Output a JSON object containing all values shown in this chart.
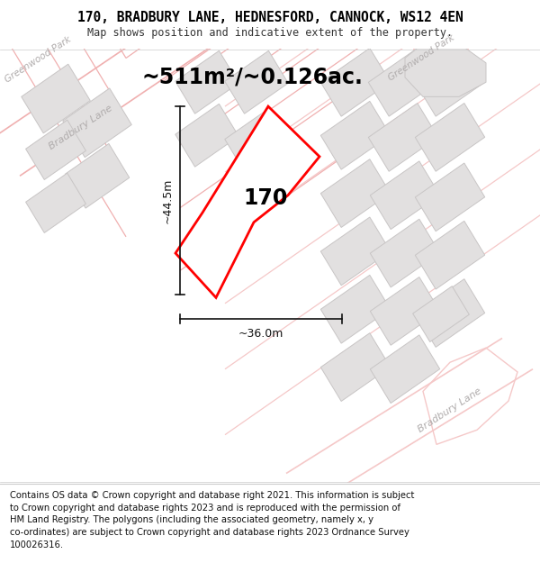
{
  "title": "170, BRADBURY LANE, HEDNESFORD, CANNOCK, WS12 4EN",
  "subtitle": "Map shows position and indicative extent of the property.",
  "footer": "Contains OS data © Crown copyright and database right 2021. This information is subject\nto Crown copyright and database rights 2023 and is reproduced with the permission of\nHM Land Registry. The polygons (including the associated geometry, namely x, y\nco-ordinates) are subject to Crown copyright and database rights 2023 Ordnance Survey\n100026316.",
  "area_label": "~511m²/~0.126ac.",
  "width_label": "~36.0m",
  "height_label": "~44.5m",
  "plot_number": "170",
  "map_bg": "#f5f3f3",
  "road_fill": "#ffffff",
  "block_fill": "#e2e0e0",
  "block_edge": "#c8c5c5",
  "pink": "#f0b0b0",
  "pink_light": "#f5c8c8",
  "plot_edge": "#ff0000",
  "dim_color": "#111111",
  "label_gray": "#b0acac",
  "title_fontsize": 10.5,
  "subtitle_fontsize": 8.5,
  "footer_fontsize": 7.2,
  "area_fontsize": 17,
  "dim_fontsize": 9,
  "plot_num_fontsize": 17,
  "road_label_fontsize": 8,
  "greenwood_label": "Greenwood Park",
  "bradbury_label_top": "Bradbury Lane",
  "bradbury_label_bottom": "Bradbury Lane"
}
